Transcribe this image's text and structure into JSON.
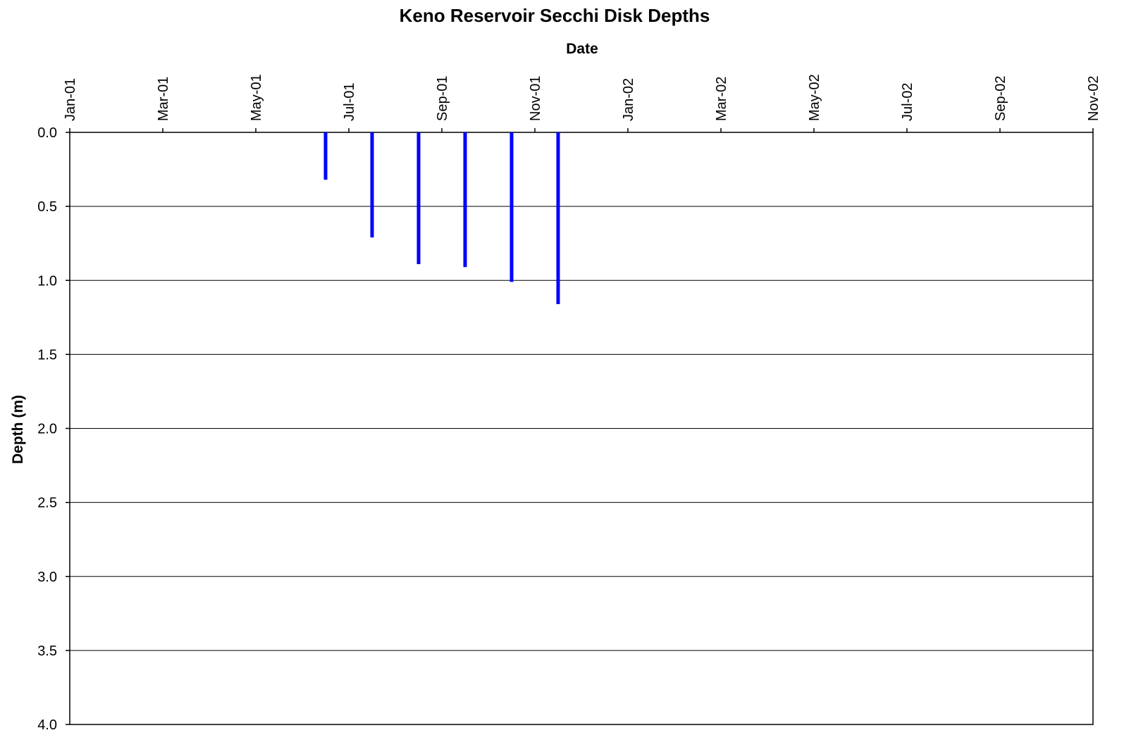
{
  "chart_data": {
    "type": "bar",
    "title": "Keno Reservoir Secchi Disk Depths",
    "x_label": "Date",
    "y_label": "Depth (m)",
    "x": [
      "2001-06",
      "2001-07",
      "2001-08",
      "2001-09",
      "2001-10",
      "2001-11"
    ],
    "values": [
      0.32,
      0.71,
      0.89,
      0.91,
      1.01,
      1.16
    ],
    "color": "#0000ff",
    "xlim": [
      "2001-01",
      "2002-11"
    ],
    "xticks": [
      {
        "value": "2001-01",
        "label": "Jan-01"
      },
      {
        "value": "2001-03",
        "label": "Mar-01"
      },
      {
        "value": "2001-05",
        "label": "May-01"
      },
      {
        "value": "2001-07",
        "label": "Jul-01"
      },
      {
        "value": "2001-09",
        "label": "Sep-01"
      },
      {
        "value": "2001-11",
        "label": "Nov-01"
      },
      {
        "value": "2002-01",
        "label": "Jan-02"
      },
      {
        "value": "2002-03",
        "label": "Mar-02"
      },
      {
        "value": "2002-05",
        "label": "May-02"
      },
      {
        "value": "2002-07",
        "label": "Jul-02"
      },
      {
        "value": "2002-09",
        "label": "Sep-02"
      },
      {
        "value": "2002-11",
        "label": "Nov-02"
      }
    ],
    "ylim": [
      0,
      4
    ],
    "yticks": [
      {
        "value": 0,
        "label": "0.0"
      },
      {
        "value": 0.5,
        "label": "0.5"
      },
      {
        "value": 1,
        "label": "1.0"
      },
      {
        "value": 1.5,
        "label": "1.5"
      },
      {
        "value": 2,
        "label": "2.0"
      },
      {
        "value": 2.5,
        "label": "2.5"
      },
      {
        "value": 3,
        "label": "3.0"
      },
      {
        "value": 3.5,
        "label": "3.5"
      },
      {
        "value": 4,
        "label": "4.0"
      }
    ],
    "y_reversed": true,
    "x_axis_position": "top",
    "grid": true
  }
}
